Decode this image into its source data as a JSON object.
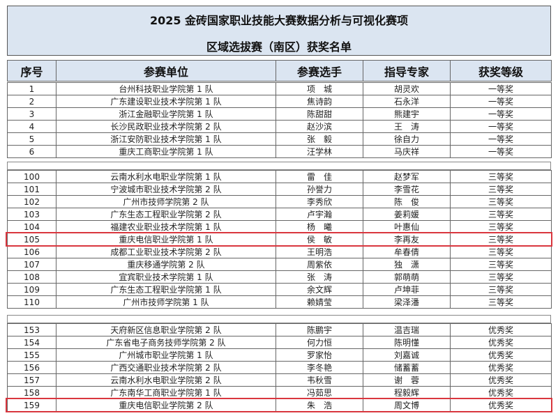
{
  "title": "2025 金砖国家职业技能大赛数据分析与可视化赛项",
  "subtitle": "区域选拔赛（南区）获奖名单",
  "headers": [
    "序号",
    "参赛单位",
    "参赛选手",
    "指导专家",
    "获奖等级"
  ],
  "groups": [
    {
      "rows": [
        [
          "1",
          "台州科技职业学院第 1 队",
          "项　城",
          "胡灵欢",
          "一等奖"
        ],
        [
          "2",
          "广东建设职业技术学院第 1 队",
          "焦诗韵",
          "石永洋",
          "一等奖"
        ],
        [
          "3",
          "浙江金融职业学院第 1 队",
          "陈甜甜",
          "熊建宇",
          "一等奖"
        ],
        [
          "4",
          "长沙民政职业技术学院第 2 队",
          "赵沙滨",
          "王　涛",
          "一等奖"
        ],
        [
          "5",
          "浙江安防职业技术学院第 1 队",
          "张　毅",
          "徐自力",
          "一等奖"
        ],
        [
          "6",
          "重庆工商职业学院第 1 队",
          "汪学林",
          "马庆祥",
          "一等奖"
        ]
      ]
    },
    {
      "rows": [
        [
          "100",
          "云南水利水电职业学院第 1 队",
          "雷　佳",
          "赵梦军",
          "三等奖"
        ],
        [
          "101",
          "宁波城市职业技术学院第 2 队",
          "孙誉力",
          "李雪花",
          "三等奖"
        ],
        [
          "102",
          "广州市技师学院第 2 队",
          "李秀欣",
          "陈　俊",
          "三等奖"
        ],
        [
          "103",
          "广东生态工程职业学院第 2 队",
          "卢宇瀚",
          "姜莉媛",
          "三等奖"
        ],
        [
          "104",
          "福建农业职业技术学院第 1 队",
          "杨　曦",
          "叶惠仙",
          "三等奖"
        ],
        [
          "105",
          "重庆电信职业学院第 1 队",
          "侯　敏",
          "李再友",
          "三等奖"
        ],
        [
          "106",
          "成都工业职业技术学院第 2 队",
          "王明浩",
          "牟春倩",
          "三等奖"
        ],
        [
          "107",
          "重庆移通学院第 2 队",
          "周紫依",
          "独　潇",
          "三等奖"
        ],
        [
          "108",
          "宜宾职业技术学院第 1 队",
          "张　涛",
          "郭萌萌",
          "三等奖"
        ],
        [
          "109",
          "广东生态工程职业学院第 1 队",
          "余文辉",
          "卢坤菲",
          "三等奖"
        ],
        [
          "110",
          "广州市技师学院第 1 队",
          "赖婧莹",
          "梁泽潘",
          "三等奖"
        ]
      ]
    },
    {
      "rows": [
        [
          "153",
          "天府新区信息职业学院第 2 队",
          "陈鹏宇",
          "温吉瑞",
          "优秀奖"
        ],
        [
          "154",
          "广东省电子商务技师学院第 2 队",
          "何力恒",
          "陈明懂",
          "优秀奖"
        ],
        [
          "155",
          "广州城市职业学院第 1 队",
          "罗家怡",
          "刘嘉诚",
          "优秀奖"
        ],
        [
          "156",
          "广西交通职业技术学院第 2 队",
          "李冬艳",
          "储蓄蓄",
          "优秀奖"
        ],
        [
          "157",
          "云南水利水电职业学院第 2 队",
          "韦秋雪",
          "谢　蓉",
          "优秀奖"
        ],
        [
          "158",
          "广东南华工商职业学院第 1 队",
          "冯茹思",
          "程毅辉",
          "优秀奖"
        ],
        [
          "159",
          "重庆电信职业学院第 2 队",
          "朱　浩",
          "周文博",
          "优秀奖"
        ]
      ]
    }
  ]
}
